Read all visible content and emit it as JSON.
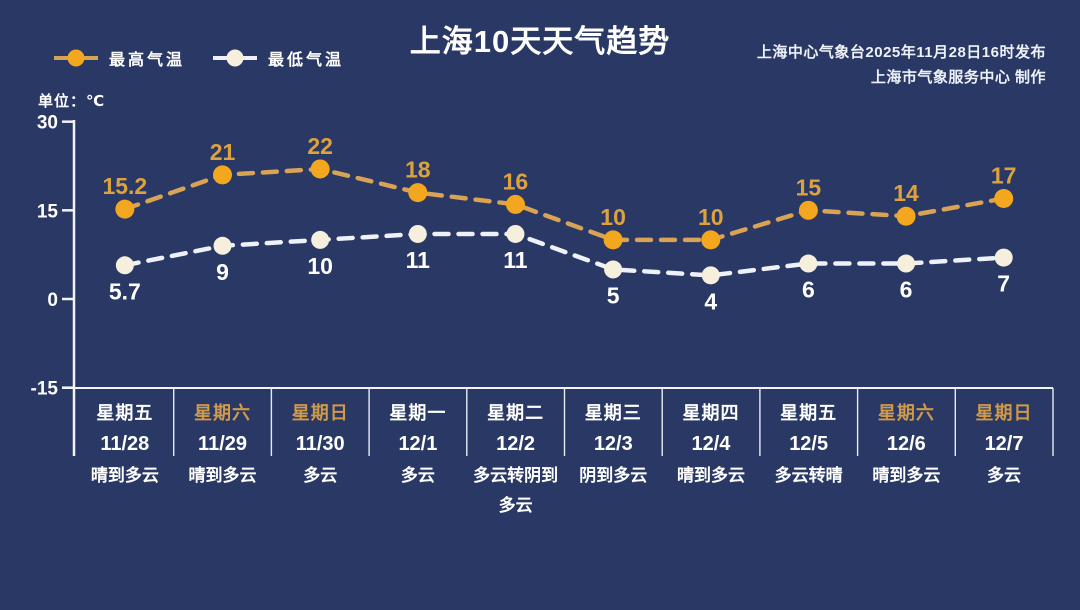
{
  "meta": {
    "title": "上海10天天气趋势",
    "source_line1": "上海中心气象台2025年11月28日16时发布",
    "source_line2": "上海市气象服务中心  制作",
    "unit_label": "单位：℃"
  },
  "legend": {
    "high_label": "最高气温",
    "low_label": "最低气温"
  },
  "colors": {
    "background": "#293864",
    "axis": "#f2f4f8",
    "separator": "#e8ecf4",
    "high_marker": "#f3a71f",
    "high_line": "#d9a355",
    "high_text": "#dda23e",
    "low_marker": "#f6efdd",
    "low_line": "#eef1f7",
    "low_text": "#ffffff",
    "weekend_text": "#cf9a4a"
  },
  "chart_data": {
    "type": "line",
    "title": "上海10天天气趋势",
    "unit": "℃",
    "categories": [
      "11/28",
      "11/29",
      "11/30",
      "12/1",
      "12/2",
      "12/3",
      "12/4",
      "12/5",
      "12/6",
      "12/7"
    ],
    "series": [
      {
        "name": "最高气温",
        "color_key": "high",
        "values": [
          15.2,
          21,
          22,
          18,
          16,
          10,
          10,
          15,
          14,
          17
        ]
      },
      {
        "name": "最低气温",
        "color_key": "low",
        "values": [
          5.7,
          9,
          10,
          11,
          11,
          5,
          4,
          6,
          6,
          7
        ]
      }
    ],
    "yticks": [
      30,
      15,
      0,
      -15
    ],
    "ylim": [
      -15,
      30
    ],
    "grid": false,
    "line_style": "dashed",
    "legend_position": "top-left"
  },
  "days": [
    {
      "weekday": "星期五",
      "date": "11/28",
      "weather": "晴到多云",
      "weekend": false
    },
    {
      "weekday": "星期六",
      "date": "11/29",
      "weather": "晴到多云",
      "weekend": true
    },
    {
      "weekday": "星期日",
      "date": "11/30",
      "weather": "多云",
      "weekend": true
    },
    {
      "weekday": "星期一",
      "date": "12/1",
      "weather": "多云",
      "weekend": false
    },
    {
      "weekday": "星期二",
      "date": "12/2",
      "weather": "多云转阴到多云",
      "weekend": false
    },
    {
      "weekday": "星期三",
      "date": "12/3",
      "weather": "阴到多云",
      "weekend": false
    },
    {
      "weekday": "星期四",
      "date": "12/4",
      "weather": "晴到多云",
      "weekend": false
    },
    {
      "weekday": "星期五",
      "date": "12/5",
      "weather": "多云转晴",
      "weekend": false
    },
    {
      "weekday": "星期六",
      "date": "12/6",
      "weather": "晴到多云",
      "weekend": true
    },
    {
      "weekday": "星期日",
      "date": "12/7",
      "weather": "多云",
      "weekend": true
    }
  ]
}
